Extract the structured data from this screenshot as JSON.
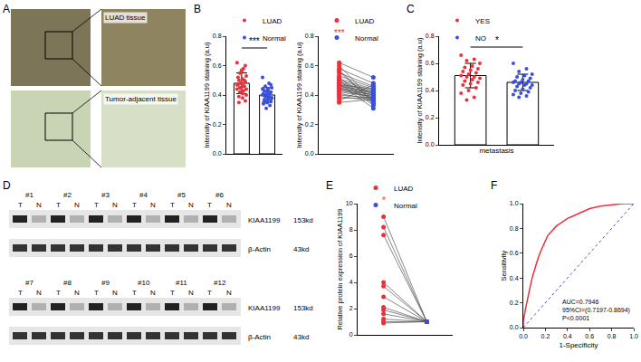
{
  "panels": [
    {
      "label": "A",
      "images": [
        "LUAD tissue",
        "Tumor-adjacent tissue"
      ]
    },
    {
      "label": "D",
      "groups": [
        [
          "#1",
          "#2",
          "#3",
          "#4",
          "#5",
          "#6"
        ],
        [
          "#7",
          "#8",
          "#9",
          "#10",
          "#11",
          "#12"
        ]
      ],
      "lanes": [
        "T",
        "N"
      ],
      "rows": [
        {
          "name": "KIAA1199",
          "size": "153kd"
        },
        {
          "name": "β-Actin",
          "size": "43kd"
        }
      ]
    }
  ],
  "chart_data": [
    {
      "label": "B",
      "type": "bar",
      "ylabel": "Intensity of KIAA1199 staining (a.u)",
      "ylim": [
        0,
        0.8
      ],
      "yticks": [
        {
          "value": 0,
          "label": "0.0"
        },
        {
          "value": 0.2,
          "label": "0.2"
        },
        {
          "value": 0.4,
          "label": "0.4"
        },
        {
          "value": 0.6,
          "label": "0.6"
        },
        {
          "value": 0.8,
          "label": "0.8"
        }
      ],
      "tick_labels": "y",
      "legend": "upper left",
      "annotations": [
        "***"
      ],
      "series": [
        {
          "name": "LUAD",
          "color": "#e8323c",
          "mean": 0.48,
          "error": 0.07,
          "values": [
            0.62,
            0.58,
            0.55,
            0.53,
            0.51,
            0.5,
            0.49,
            0.48,
            0.47,
            0.46,
            0.45,
            0.44,
            0.43,
            0.42,
            0.4,
            0.38,
            0.35,
            0.6,
            0.56,
            0.52,
            0.5,
            0.48,
            0.47,
            0.46,
            0.45,
            0.44,
            0.41,
            0.39,
            0.36,
            0.57
          ]
        },
        {
          "name": "Normal",
          "color": "#3b50d8",
          "mean": 0.4,
          "error": 0.05,
          "values": [
            0.52,
            0.48,
            0.46,
            0.45,
            0.44,
            0.43,
            0.42,
            0.42,
            0.41,
            0.41,
            0.4,
            0.4,
            0.39,
            0.39,
            0.38,
            0.38,
            0.37,
            0.36,
            0.35,
            0.34,
            0.33,
            0.31,
            0.44,
            0.42,
            0.4,
            0.38,
            0.37,
            0.36,
            0.47,
            0.35
          ]
        }
      ]
    },
    {
      "type": "paired",
      "ylabel": "Intensity of KIAA1199 staining (a.u)",
      "ylim": [
        0,
        0.8
      ],
      "yticks": [
        {
          "value": 0,
          "label": "0.0"
        },
        {
          "value": 0.2,
          "label": "0.2"
        },
        {
          "value": 0.4,
          "label": "0.4"
        },
        {
          "value": 0.6,
          "label": "0.6"
        },
        {
          "value": 0.8,
          "label": "0.8"
        }
      ],
      "tick_labels": "y",
      "legend": "upper left",
      "annotations": [
        "***"
      ],
      "series": [
        {
          "name": "LUAD",
          "color": "#e8323c",
          "values": [
            0.62,
            0.58,
            0.55,
            0.53,
            0.51,
            0.5,
            0.49,
            0.48,
            0.47,
            0.46,
            0.45,
            0.44,
            0.43,
            0.42,
            0.4,
            0.38,
            0.35,
            0.6,
            0.56,
            0.52,
            0.5,
            0.48,
            0.47,
            0.46,
            0.45,
            0.44,
            0.41,
            0.39,
            0.36,
            0.57
          ]
        },
        {
          "name": "Normal",
          "color": "#3b50d8",
          "values": [
            0.52,
            0.48,
            0.46,
            0.45,
            0.44,
            0.43,
            0.42,
            0.42,
            0.41,
            0.41,
            0.4,
            0.4,
            0.39,
            0.39,
            0.38,
            0.38,
            0.37,
            0.36,
            0.35,
            0.34,
            0.33,
            0.31,
            0.44,
            0.42,
            0.4,
            0.38,
            0.37,
            0.36,
            0.47,
            0.35
          ]
        }
      ]
    },
    {
      "label": "C",
      "type": "bar",
      "ylabel": "Intensity of KIAA1199 staining (a.u)",
      "xlabel": "metastasis",
      "ylim": [
        0,
        0.8
      ],
      "yticks": [
        {
          "value": 0,
          "label": "0.0"
        },
        {
          "value": 0.2,
          "label": "0.2"
        },
        {
          "value": 0.4,
          "label": "0.4"
        },
        {
          "value": 0.6,
          "label": "0.6"
        },
        {
          "value": 0.8,
          "label": "0.8"
        }
      ],
      "tick_labels": "y",
      "legend": "upper left",
      "annotations": [
        "*"
      ],
      "series": [
        {
          "name": "YES",
          "color": "#e8323c",
          "mean": 0.51,
          "error": 0.09,
          "values": [
            0.66,
            0.63,
            0.62,
            0.6,
            0.58,
            0.57,
            0.56,
            0.55,
            0.54,
            0.53,
            0.52,
            0.51,
            0.5,
            0.5,
            0.49,
            0.48,
            0.47,
            0.46,
            0.45,
            0.44,
            0.42,
            0.4,
            0.38,
            0.35,
            0.33
          ]
        },
        {
          "name": "NO",
          "color": "#3b50d8",
          "mean": 0.46,
          "error": 0.06,
          "values": [
            0.6,
            0.56,
            0.54,
            0.52,
            0.51,
            0.5,
            0.49,
            0.48,
            0.47,
            0.47,
            0.46,
            0.46,
            0.45,
            0.45,
            0.44,
            0.44,
            0.43,
            0.42,
            0.41,
            0.4,
            0.39,
            0.38,
            0.37,
            0.36,
            0.35
          ]
        }
      ]
    },
    {
      "label": "E",
      "type": "paired",
      "ylabel": "Relative protein expression of KIAA1199",
      "ylim": [
        0,
        10
      ],
      "yticks": [
        0,
        2,
        4,
        6,
        8,
        10
      ],
      "tick_labels": "y",
      "legend": "upper left",
      "annotations": [
        "*"
      ],
      "series": [
        {
          "name": "LUAD",
          "color": "#e8323c",
          "values": [
            9.0,
            8.2,
            7.6,
            4.0,
            3.7,
            2.9,
            2.1,
            1.9,
            1.6,
            1.2,
            1.0,
            0.9
          ]
        },
        {
          "name": "Normal",
          "color": "#3b50d8",
          "values": [
            1,
            1,
            1,
            1,
            1,
            1,
            1,
            1,
            1,
            1,
            1,
            1
          ]
        }
      ]
    },
    {
      "label": "F",
      "type": "line",
      "xlabel": "1-Specificity",
      "ylabel": "Sensitivity",
      "xlim": [
        0,
        1
      ],
      "ylim": [
        0,
        1
      ],
      "xticks": [
        {
          "value": 0,
          "label": "0.0"
        },
        {
          "value": 0.2,
          "label": "0.2"
        },
        {
          "value": 0.4,
          "label": "0.4"
        },
        {
          "value": 0.6,
          "label": "0.6"
        },
        {
          "value": 0.8,
          "label": "0.8"
        },
        {
          "value": 1,
          "label": "1.0"
        }
      ],
      "yticks": [
        {
          "value": 0,
          "label": "0.0"
        },
        {
          "value": 0.2,
          "label": "0.2"
        },
        {
          "value": 0.4,
          "label": "0.4"
        },
        {
          "value": 0.6,
          "label": "0.6"
        },
        {
          "value": 0.8,
          "label": "0.8"
        },
        {
          "value": 1,
          "label": "1.0"
        }
      ],
      "annotations": [
        "AUC=0.7946",
        "95%CI=(0.7197-0.8694)",
        "P<0.0001"
      ],
      "series": [
        {
          "color": "#e8323c",
          "line_style": "solid",
          "x": [
            0,
            0,
            0.02,
            0.04,
            0.06,
            0.08,
            0.1,
            0.12,
            0.15,
            0.18,
            0.2,
            0.22,
            0.25,
            0.3,
            0.35,
            0.4,
            0.45,
            0.5,
            0.55,
            0.6,
            0.7,
            0.8,
            0.9,
            1.0
          ],
          "values": [
            0,
            0.05,
            0.15,
            0.25,
            0.32,
            0.4,
            0.47,
            0.52,
            0.6,
            0.66,
            0.7,
            0.74,
            0.77,
            0.82,
            0.85,
            0.88,
            0.9,
            0.92,
            0.94,
            0.96,
            0.98,
            0.99,
            1.0,
            1.0
          ]
        },
        {
          "color": "#3b50d8",
          "line_style": "dot",
          "x": [
            0,
            1
          ],
          "values": [
            0,
            1
          ]
        }
      ]
    }
  ]
}
